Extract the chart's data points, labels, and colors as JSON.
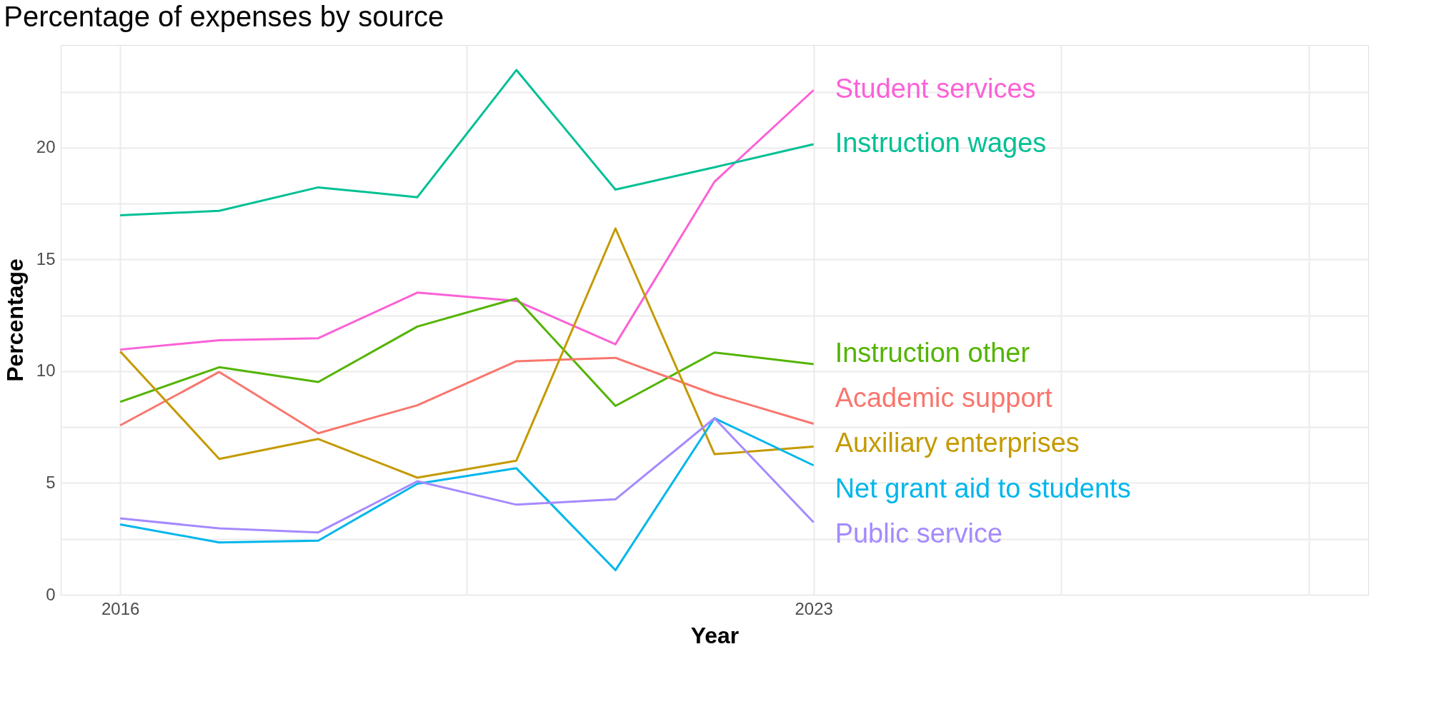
{
  "chart_data": {
    "type": "line",
    "title": "Percentage of expenses by source",
    "xlabel": "Year",
    "ylabel": "Percentage",
    "x": [
      2016,
      2017,
      2018,
      2019,
      2020,
      2021,
      2022,
      2023
    ],
    "series": [
      {
        "name": "Student services",
        "color": "#fb61d7",
        "values": [
          10.97,
          11.39,
          11.48,
          13.52,
          13.15,
          11.21,
          18.48,
          22.58
        ]
      },
      {
        "name": "Instruction wages",
        "color": "#00c094",
        "values": [
          16.98,
          17.18,
          18.23,
          17.79,
          23.48,
          18.13,
          19.13,
          20.16
        ]
      },
      {
        "name": "Instruction other",
        "color": "#53b400",
        "values": [
          8.63,
          10.18,
          9.52,
          12.0,
          13.26,
          8.45,
          10.84,
          10.32
        ]
      },
      {
        "name": "Academic support",
        "color": "#f8766d",
        "values": [
          7.58,
          9.97,
          7.23,
          8.48,
          10.45,
          10.6,
          8.97,
          7.65
        ]
      },
      {
        "name": "Auxiliary enterprises",
        "color": "#c49a00",
        "values": [
          10.89,
          6.08,
          6.97,
          5.24,
          6.0,
          16.39,
          6.29,
          6.63
        ]
      },
      {
        "name": "Net grant aid to students",
        "color": "#00b6eb",
        "values": [
          3.15,
          2.34,
          2.42,
          4.97,
          5.66,
          1.1,
          7.9,
          5.79
        ]
      },
      {
        "name": "Public service",
        "color": "#a58aff",
        "values": [
          3.42,
          2.97,
          2.79,
          5.08,
          4.03,
          4.27,
          7.9,
          3.24
        ]
      }
    ],
    "xlim": [
      2015.4,
      2028.6
    ],
    "xticks": [
      2016,
      {
        "value": 2019.5,
        "label": null
      },
      2023,
      {
        "value": 2025.5,
        "label": null
      },
      {
        "value": 2028,
        "label": null
      }
    ],
    "ylim": [
      0,
      24.6
    ],
    "yticks": [
      0,
      {
        "value": 2.5,
        "label": null
      },
      5,
      {
        "value": 7.5,
        "label": null
      },
      10,
      {
        "value": 12.5,
        "label": null
      },
      15,
      {
        "value": 17.5,
        "label": null
      },
      20,
      {
        "value": 22.5,
        "label": null
      }
    ],
    "grid": true
  }
}
